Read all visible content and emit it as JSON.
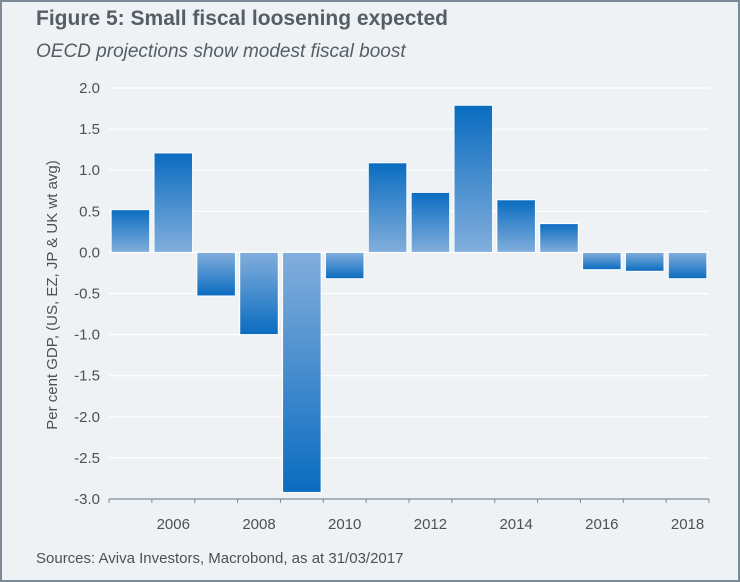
{
  "title": "Figure 5: Small fiscal loosening expected",
  "subtitle": "OECD projections show modest fiscal boost",
  "source": "Sources: Aviva Investors, Macrobond, as at 31/03/2017",
  "colors": {
    "bar_top": "#0a6cc0",
    "bar_bottom": "#82aedc",
    "background": "#eef2f5",
    "grid": "#ffffff",
    "border": "#7b8a96"
  },
  "chart_data": {
    "type": "bar",
    "categories": [
      "2005",
      "2006",
      "2007",
      "2008",
      "2009",
      "2010",
      "2011",
      "2012",
      "2013",
      "2014",
      "2015",
      "2016",
      "2017",
      "2018"
    ],
    "values": [
      0.52,
      1.21,
      -0.53,
      -1.0,
      -2.92,
      -0.32,
      1.09,
      0.73,
      1.79,
      0.64,
      0.35,
      -0.21,
      -0.23,
      -0.32
    ],
    "ylabel": "Per cent GDP, (US, EZ, JP & UK wt avg)",
    "xlabel": "",
    "ylim": [
      -3.0,
      2.0
    ],
    "yticks": [
      "2.0",
      "1.5",
      "1.0",
      "0.5",
      "0.0",
      "-0.5",
      "-1.0",
      "-1.5",
      "-2.0",
      "-2.5",
      "-3.0"
    ],
    "xticks": [
      "2006",
      "2008",
      "2010",
      "2012",
      "2014",
      "2016",
      "2018"
    ],
    "grid": true
  }
}
